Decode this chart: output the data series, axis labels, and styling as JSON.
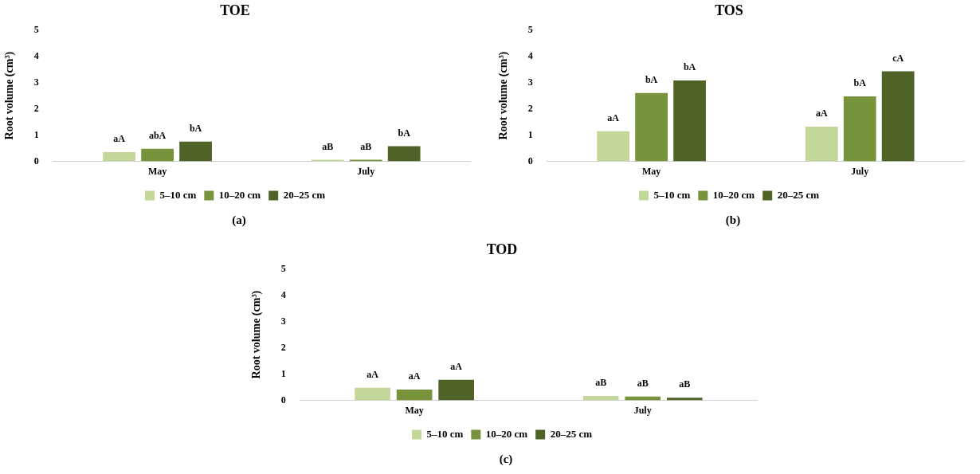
{
  "chart_data": [
    {
      "type": "bar",
      "title": "TOE",
      "ylabel": "Root volume (cm³)",
      "categories": [
        "May",
        "July"
      ],
      "ylim": [
        0,
        5
      ],
      "yticks": [
        0,
        1,
        2,
        3,
        4,
        5
      ],
      "grid": false,
      "legend": "bottom",
      "annotations": [
        "(a)"
      ],
      "series": [
        {
          "name": "5–10 cm",
          "color": "#c4d79b",
          "values": [
            0.35,
            0.06
          ],
          "value_labels": [
            "aA",
            "aB"
          ]
        },
        {
          "name": "10–20 cm",
          "color": "#77933c",
          "values": [
            0.48,
            0.06
          ],
          "value_labels": [
            "abA",
            "aB"
          ]
        },
        {
          "name": "20–25 cm",
          "color": "#4f6228",
          "values": [
            0.75,
            0.58
          ],
          "value_labels": [
            "bA",
            "bA"
          ]
        }
      ]
    },
    {
      "type": "bar",
      "title": "TOS",
      "ylabel": "Root volume (cm³)",
      "categories": [
        "May",
        "July"
      ],
      "ylim": [
        0,
        5
      ],
      "yticks": [
        0,
        1,
        2,
        3,
        4,
        5
      ],
      "grid": false,
      "legend": "bottom",
      "annotations": [
        "(b)"
      ],
      "series": [
        {
          "name": "5–10 cm",
          "color": "#c4d79b",
          "values": [
            1.15,
            1.32
          ],
          "value_labels": [
            "aA",
            "aA"
          ]
        },
        {
          "name": "10–20 cm",
          "color": "#77933c",
          "values": [
            2.6,
            2.47
          ],
          "value_labels": [
            "bA",
            "bA"
          ]
        },
        {
          "name": "20–25 cm",
          "color": "#4f6228",
          "values": [
            3.08,
            3.43
          ],
          "value_labels": [
            "bA",
            "cA"
          ]
        }
      ]
    },
    {
      "type": "bar",
      "title": "TOD",
      "ylabel": "Root volume (cm³)",
      "categories": [
        "May",
        "July"
      ],
      "ylim": [
        0,
        5
      ],
      "yticks": [
        0,
        1,
        2,
        3,
        4,
        5
      ],
      "grid": false,
      "legend": "bottom",
      "annotations": [
        "(c)"
      ],
      "series": [
        {
          "name": "5–10 cm",
          "color": "#c4d79b",
          "values": [
            0.48,
            0.17
          ],
          "value_labels": [
            "aA",
            "aB"
          ]
        },
        {
          "name": "10–20 cm",
          "color": "#77933c",
          "values": [
            0.41,
            0.15
          ],
          "value_labels": [
            "aA",
            "aB"
          ]
        },
        {
          "name": "20–25 cm",
          "color": "#4f6228",
          "values": [
            0.78,
            0.1
          ],
          "value_labels": [
            "aA",
            "aB"
          ]
        }
      ]
    }
  ]
}
